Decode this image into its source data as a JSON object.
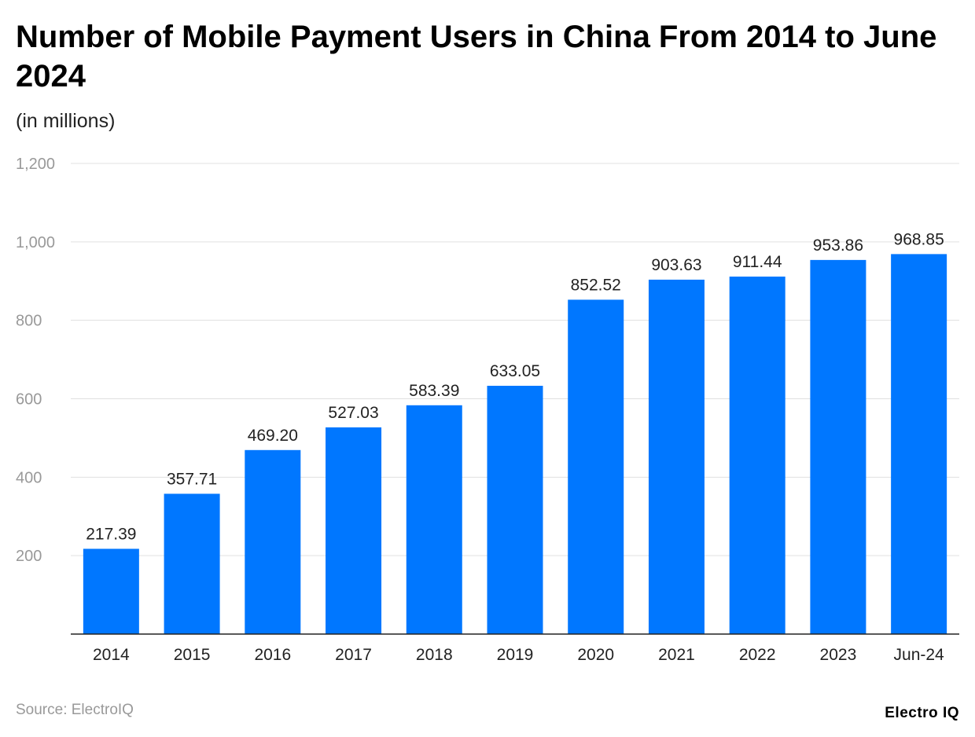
{
  "chart_data": {
    "type": "bar",
    "title": "Number of Mobile Payment Users in China From 2014 to June 2024",
    "subtitle": "(in millions)",
    "categories": [
      "2014",
      "2015",
      "2016",
      "2017",
      "2018",
      "2019",
      "2020",
      "2021",
      "2022",
      "2023",
      "Jun-24"
    ],
    "values": [
      217.39,
      357.71,
      469.2,
      527.03,
      583.39,
      633.05,
      852.52,
      903.63,
      911.44,
      953.86,
      968.85
    ],
    "data_labels": [
      "217.39",
      "357.71",
      "469.20",
      "527.03",
      "583.39",
      "633.05",
      "852.52",
      "903.63",
      "911.44",
      "953.86",
      "968.85"
    ],
    "ylim": [
      0,
      1200
    ],
    "yticks": [
      200,
      400,
      600,
      800,
      1000,
      1200
    ],
    "ytick_labels": [
      "200",
      "400",
      "600",
      "800",
      "1,000",
      "1,200"
    ],
    "grid": true,
    "bar_color": "#0077ff",
    "xlabel": "",
    "ylabel": ""
  },
  "footer": {
    "source": "Source: ElectroIQ",
    "logo": "Electro IQ"
  }
}
